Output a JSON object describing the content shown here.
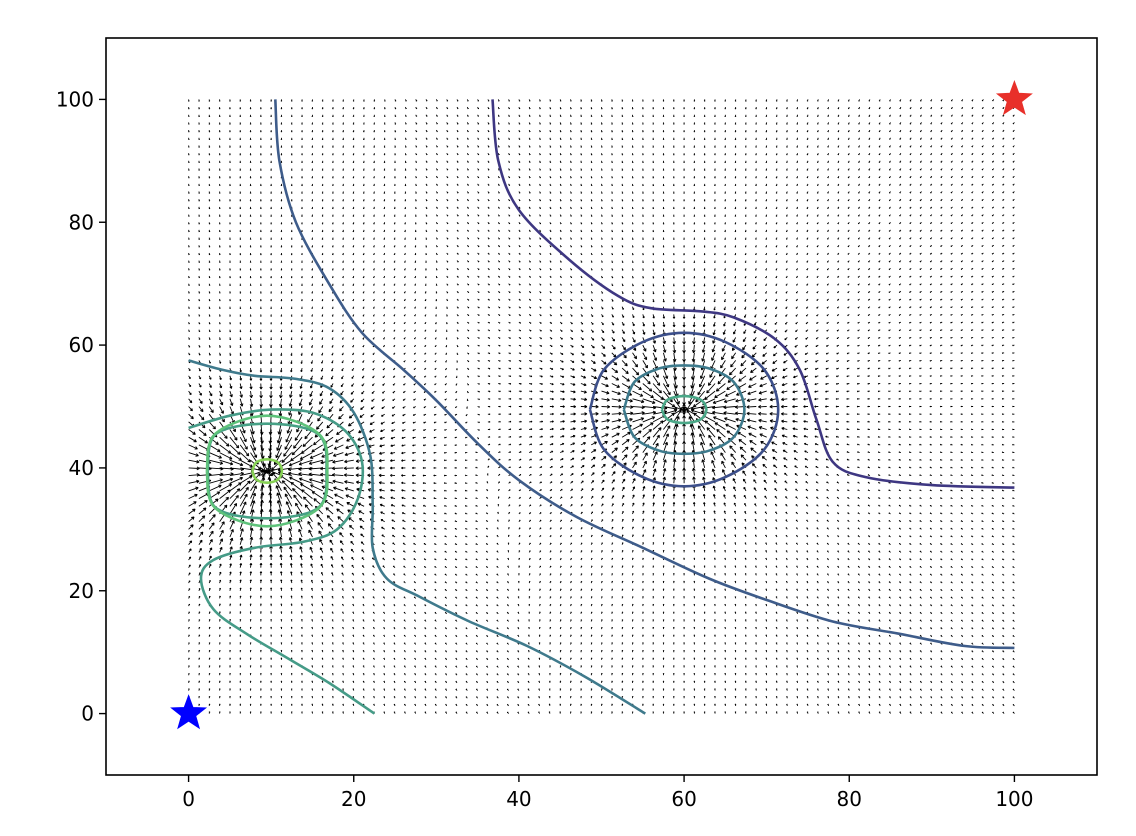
{
  "chart_data": {
    "type": "quiver+contour",
    "title": "",
    "xlabel": "",
    "ylabel": "",
    "xlim": [
      -10,
      110
    ],
    "ylim": [
      -10,
      110
    ],
    "grid": false,
    "x_ticks": [
      "0",
      "20",
      "40",
      "60",
      "80",
      "100"
    ],
    "y_ticks": [
      "0",
      "20",
      "40",
      "60",
      "80",
      "100"
    ],
    "field": {
      "x_range": [
        0,
        100
      ],
      "y_range": [
        0,
        100
      ],
      "step": 1.25,
      "attractors": [
        {
          "x": 9.5,
          "y": 39.5,
          "strength": 1.3
        },
        {
          "x": 60,
          "y": 49.5,
          "strength": 1.0
        }
      ],
      "color": "#000000"
    },
    "markers": [
      {
        "name": "start",
        "x": 0,
        "y": 0,
        "shape": "star",
        "color": "#0000ff"
      },
      {
        "name": "goal",
        "x": 100,
        "y": 100,
        "shape": "star",
        "color": "#e8302a"
      }
    ],
    "contours": [
      {
        "level": 1,
        "color": "#3e3782",
        "points": [
          [
            36.8,
            100
          ],
          [
            37.5,
            90
          ],
          [
            40,
            82
          ],
          [
            46,
            74
          ],
          [
            52,
            68
          ],
          [
            56,
            66
          ],
          [
            62,
            65.5
          ],
          [
            66,
            64.5
          ],
          [
            71,
            61
          ],
          [
            74,
            56
          ],
          [
            76,
            48
          ],
          [
            78,
            41
          ],
          [
            82,
            38.5
          ],
          [
            90,
            37.2
          ],
          [
            100,
            36.8
          ]
        ]
      },
      {
        "level": 2,
        "color": "#3e5c8a",
        "points": [
          [
            10.5,
            100
          ],
          [
            11,
            90
          ],
          [
            13,
            80
          ],
          [
            17,
            70
          ],
          [
            21,
            62
          ],
          [
            26,
            56
          ],
          [
            30,
            51
          ],
          [
            35,
            44
          ],
          [
            40,
            38
          ],
          [
            47,
            32
          ],
          [
            55,
            27
          ],
          [
            63,
            22
          ],
          [
            70,
            18.5
          ],
          [
            78,
            15
          ],
          [
            86,
            13
          ],
          [
            94,
            11
          ],
          [
            100,
            10.7
          ]
        ]
      },
      {
        "level": 3,
        "color": "#3f7a8c",
        "points": [
          [
            0,
            57.5
          ],
          [
            4,
            56
          ],
          [
            8,
            55
          ],
          [
            13,
            54.5
          ],
          [
            17,
            53
          ],
          [
            20,
            49
          ],
          [
            22,
            42
          ],
          [
            22.3,
            34
          ],
          [
            22.3,
            27
          ],
          [
            24,
            22
          ],
          [
            28,
            19
          ],
          [
            34,
            15
          ],
          [
            41,
            11
          ],
          [
            48,
            6
          ],
          [
            55.3,
            0
          ]
        ]
      },
      {
        "level": 4,
        "color": "#459b87",
        "points": [
          [
            0,
            46.5
          ],
          [
            5,
            48.5
          ],
          [
            10,
            49.5
          ],
          [
            15,
            49
          ],
          [
            19,
            46
          ],
          [
            21,
            41
          ],
          [
            20.5,
            35
          ],
          [
            18,
            30
          ],
          [
            14,
            28
          ],
          [
            8,
            27
          ],
          [
            3,
            25
          ],
          [
            1.5,
            22
          ],
          [
            3,
            17
          ],
          [
            7,
            13
          ],
          [
            12,
            9
          ],
          [
            17,
            5
          ],
          [
            22.5,
            0
          ]
        ]
      },
      {
        "level": 5,
        "color": "#46a085",
        "points": [
          [
            2.3,
            39.5
          ],
          [
            3.3,
            33.5
          ],
          [
            9.5,
            31.8
          ],
          [
            15.7,
            33.5
          ],
          [
            16.7,
            39.5
          ],
          [
            15.7,
            45.5
          ],
          [
            9.5,
            47.2
          ],
          [
            3.3,
            45.5
          ],
          [
            2.3,
            39.5
          ]
        ]
      },
      {
        "level": 6,
        "color": "#5ec27a",
        "points": [
          [
            2.2,
            39.5
          ],
          [
            3.2,
            33.5
          ],
          [
            9.5,
            30.5
          ],
          [
            15.8,
            33.5
          ],
          [
            16.8,
            39.5
          ],
          [
            15.8,
            45.5
          ],
          [
            9.5,
            48.5
          ],
          [
            3.2,
            45.5
          ],
          [
            2.2,
            39.5
          ]
        ]
      },
      {
        "level": 7,
        "color": "#86d154",
        "points": [
          [
            7.7,
            39.5
          ],
          [
            8.2,
            38.1
          ],
          [
            9.5,
            37.6
          ],
          [
            10.8,
            38.1
          ],
          [
            11.3,
            39.5
          ],
          [
            10.8,
            40.9
          ],
          [
            9.5,
            41.4
          ],
          [
            8.2,
            40.9
          ],
          [
            7.7,
            39.5
          ]
        ]
      },
      {
        "level": 8,
        "color": "#3c4f8a",
        "points": [
          [
            48.6,
            49.5
          ],
          [
            50.3,
            43
          ],
          [
            55,
            38.5
          ],
          [
            60,
            37
          ],
          [
            65,
            38.5
          ],
          [
            69.7,
            43
          ],
          [
            71.4,
            49.5
          ],
          [
            69.7,
            56
          ],
          [
            65,
            60.5
          ],
          [
            60,
            62
          ],
          [
            55,
            60.5
          ],
          [
            50.3,
            56
          ],
          [
            48.6,
            49.5
          ]
        ]
      },
      {
        "level": 9,
        "color": "#3d7a8c",
        "points": [
          [
            52.7,
            49.5
          ],
          [
            54,
            45
          ],
          [
            57,
            42.8
          ],
          [
            60,
            42.3
          ],
          [
            63,
            42.8
          ],
          [
            66,
            45
          ],
          [
            67.3,
            49.5
          ],
          [
            66,
            54
          ],
          [
            63,
            56.2
          ],
          [
            60,
            56.7
          ],
          [
            57,
            56.2
          ],
          [
            54,
            54
          ],
          [
            52.7,
            49.5
          ]
        ]
      },
      {
        "level": 10,
        "color": "#4aa888",
        "points": [
          [
            57.3,
            49.5
          ],
          [
            58,
            47.9
          ],
          [
            60,
            47.3
          ],
          [
            62,
            47.9
          ],
          [
            62.7,
            49.5
          ],
          [
            62,
            51.1
          ],
          [
            60,
            51.7
          ],
          [
            58,
            51.1
          ],
          [
            57.3,
            49.5
          ]
        ]
      }
    ]
  }
}
